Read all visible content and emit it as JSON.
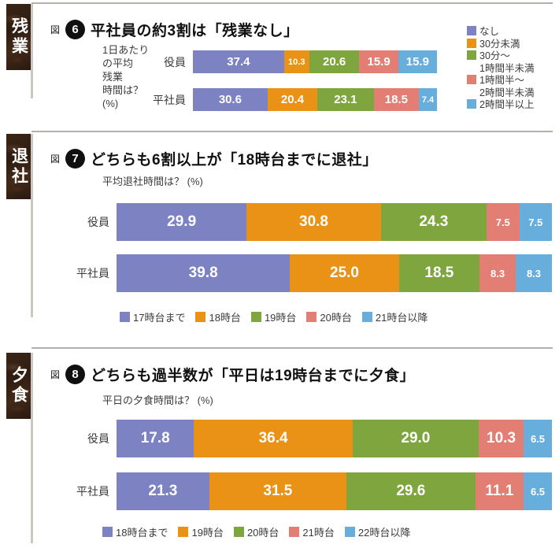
{
  "palette": {
    "bar_colors": [
      "#7d82c3",
      "#ea9215",
      "#7fa53e",
      "#e27e73",
      "#68aedd"
    ],
    "tab_background": "#32210f",
    "tab_text": "#ffffff",
    "rule_color": "#b3b0ac",
    "badge_background": "#101010",
    "value_text": "#ffffff"
  },
  "chart_data": [
    {
      "type": "bar",
      "stacked": true,
      "orientation": "horizontal",
      "section_tab": "残業",
      "fig_label": "図",
      "fig_number": "6",
      "title": "平社員の約3割は「残業なし」",
      "question_lines": [
        "1日あたり",
        "の平均",
        "残業",
        "時間は？",
        "(%)"
      ],
      "categories": [
        "役員",
        "平社員"
      ],
      "series": [
        {
          "name": "なし",
          "legend_lines": [
            "なし"
          ],
          "color": "#7d82c3",
          "values": [
            37.4,
            30.6
          ]
        },
        {
          "name": "30分未満",
          "legend_lines": [
            "30分未満"
          ],
          "color": "#ea9215",
          "values": [
            10.3,
            20.4
          ]
        },
        {
          "name": "30分〜1時間半未満",
          "legend_lines": [
            "30分〜",
            "1時間半未満"
          ],
          "color": "#7fa53e",
          "values": [
            20.6,
            23.1
          ]
        },
        {
          "name": "1時間半〜2時間半未満",
          "legend_lines": [
            "1時間半〜",
            "2時間半未満"
          ],
          "color": "#e27e73",
          "values": [
            15.9,
            18.5
          ]
        },
        {
          "name": "2時間半以上",
          "legend_lines": [
            "2時間半以上"
          ],
          "color": "#68aedd",
          "values": [
            15.9,
            7.4
          ]
        }
      ],
      "legend_position": "right",
      "xlim": [
        0,
        100
      ],
      "grid": false
    },
    {
      "type": "bar",
      "stacked": true,
      "orientation": "horizontal",
      "section_tab": "退社",
      "fig_label": "図",
      "fig_number": "7",
      "title": "どちらも6割以上が「18時台までに退社」",
      "question_lines": [
        "平均退社時間は？ (%)"
      ],
      "categories": [
        "役員",
        "平社員"
      ],
      "series": [
        {
          "name": "17時台まで",
          "legend_lines": [
            "17時台まで"
          ],
          "color": "#7d82c3",
          "values": [
            29.9,
            39.8
          ]
        },
        {
          "name": "18時台",
          "legend_lines": [
            "18時台"
          ],
          "color": "#ea9215",
          "values": [
            30.8,
            25.0
          ]
        },
        {
          "name": "19時台",
          "legend_lines": [
            "19時台"
          ],
          "color": "#7fa53e",
          "values": [
            24.3,
            18.5
          ]
        },
        {
          "name": "20時台",
          "legend_lines": [
            "20時台"
          ],
          "color": "#e27e73",
          "values": [
            7.5,
            8.3
          ]
        },
        {
          "name": "21時台以降",
          "legend_lines": [
            "21時台以降"
          ],
          "color": "#68aedd",
          "values": [
            7.5,
            8.3
          ]
        }
      ],
      "legend_position": "bottom",
      "xlim": [
        0,
        100
      ],
      "grid": false
    },
    {
      "type": "bar",
      "stacked": true,
      "orientation": "horizontal",
      "section_tab": "夕食",
      "fig_label": "図",
      "fig_number": "8",
      "title": "どちらも過半数が「平日は19時台までに夕食」",
      "question_lines": [
        "平日の夕食時間は？ (%)"
      ],
      "categories": [
        "役員",
        "平社員"
      ],
      "series": [
        {
          "name": "18時台まで",
          "legend_lines": [
            "18時台まで"
          ],
          "color": "#7d82c3",
          "values": [
            17.8,
            21.3
          ]
        },
        {
          "name": "19時台",
          "legend_lines": [
            "19時台"
          ],
          "color": "#ea9215",
          "values": [
            36.4,
            31.5
          ]
        },
        {
          "name": "20時台",
          "legend_lines": [
            "20時台"
          ],
          "color": "#7fa53e",
          "values": [
            29.0,
            29.6
          ]
        },
        {
          "name": "21時台",
          "legend_lines": [
            "21時台"
          ],
          "color": "#e27e73",
          "values": [
            10.3,
            11.1
          ]
        },
        {
          "name": "22時台以降",
          "legend_lines": [
            "22時台以降"
          ],
          "color": "#68aedd",
          "values": [
            6.5,
            6.5
          ]
        }
      ],
      "legend_position": "bottom",
      "xlim": [
        0,
        100
      ],
      "grid": false
    }
  ]
}
